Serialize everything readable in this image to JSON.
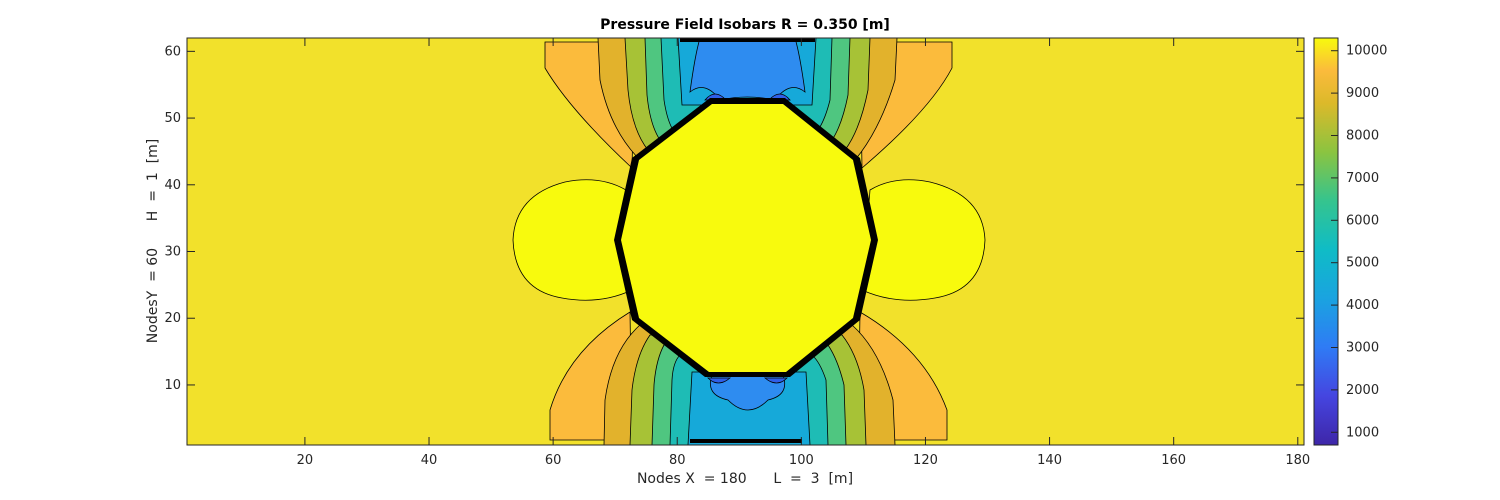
{
  "chart_data": {
    "type": "heatmap",
    "subtype": "filled-contour",
    "title": "Pressure Field Isobars R = 0.350 [m]",
    "xlabel": "Nodes X  = 180      L  =  3  [m]",
    "ylabel": "NodesY  = 60      H  =  1  [m]",
    "xlim": [
      1,
      181
    ],
    "ylim": [
      1,
      62
    ],
    "xticks": [
      20,
      40,
      60,
      80,
      100,
      120,
      140,
      160,
      180
    ],
    "yticks": [
      10,
      20,
      30,
      40,
      50,
      60
    ],
    "colorbar": {
      "colormap": "parula",
      "range": [
        700,
        10300
      ],
      "ticks": [
        1000,
        2000,
        3000,
        4000,
        5000,
        6000,
        7000,
        8000,
        9000,
        10000
      ]
    },
    "grid": false,
    "background_value": 10000,
    "obstacle": {
      "shape": "octagon-like",
      "center_x": 91,
      "center_y": 32,
      "half_width_x": 22,
      "half_height_y": 21
    },
    "bubbles": [
      {
        "side": "left",
        "center_x": 62,
        "center_y": 32
      },
      {
        "side": "right",
        "center_x": 120,
        "center_y": 32
      }
    ]
  },
  "colors": {
    "background_field": "#f2e12b",
    "obstacle": "#f8fa0d",
    "contour_line": "#000000",
    "axis": "#262626"
  }
}
